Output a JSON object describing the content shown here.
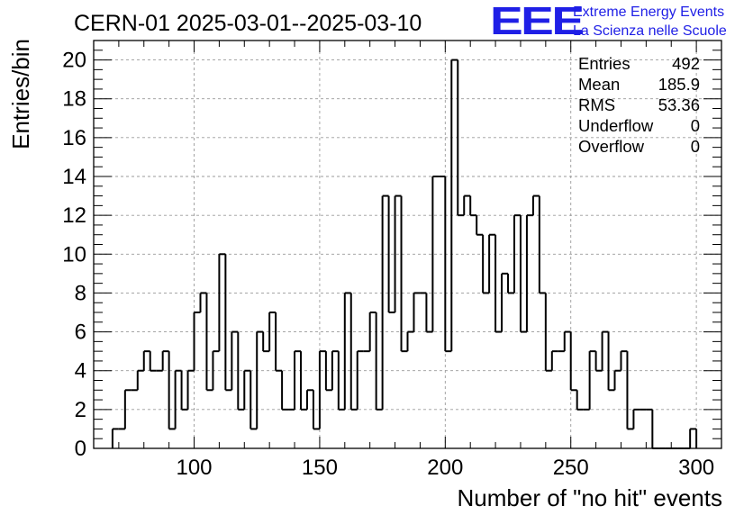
{
  "logo": {
    "mark": "EEE",
    "line1": "Extreme Energy Events",
    "line2": "La Scienza nelle Scuole"
  },
  "stats": {
    "rows": [
      {
        "label": "Entries",
        "value": "492"
      },
      {
        "label": "Mean",
        "value": "185.9"
      },
      {
        "label": "RMS",
        "value": "53.36"
      },
      {
        "label": "Underflow",
        "value": "0"
      },
      {
        "label": "Overflow",
        "value": "0"
      }
    ]
  },
  "chart_data": {
    "type": "bar",
    "style": "step-histogram",
    "title": "CERN-01 2025-03-01--2025-03-10",
    "xlabel": "Number of \"no hit\" events",
    "ylabel": "Entries/bin",
    "xlim": [
      60,
      310
    ],
    "ylim": [
      0,
      21
    ],
    "bin_width": 2.5,
    "xticks": [
      100,
      150,
      200,
      250,
      300
    ],
    "yticks": [
      0,
      2,
      4,
      6,
      8,
      10,
      12,
      14,
      16,
      18,
      20
    ],
    "grid": true,
    "series": [
      {
        "name": "CERN-01",
        "x": [
          67.5,
          70,
          72.5,
          75,
          77.5,
          80,
          82.5,
          85,
          87.5,
          90,
          92.5,
          95,
          97.5,
          100,
          102.5,
          105,
          107.5,
          110,
          112.5,
          115,
          117.5,
          120,
          122.5,
          125,
          127.5,
          130,
          132.5,
          135,
          137.5,
          140,
          142.5,
          145,
          147.5,
          150,
          152.5,
          155,
          157.5,
          160,
          162.5,
          165,
          167.5,
          170,
          172.5,
          175,
          177.5,
          180,
          182.5,
          185,
          187.5,
          190,
          192.5,
          195,
          197.5,
          200,
          202.5,
          205,
          207.5,
          210,
          212.5,
          215,
          217.5,
          220,
          222.5,
          225,
          227.5,
          230,
          232.5,
          235,
          237.5,
          240,
          242.5,
          245,
          247.5,
          250,
          252.5,
          255,
          257.5,
          260,
          262.5,
          265,
          267.5,
          270,
          272.5,
          275,
          277.5,
          280,
          282.5,
          285,
          287.5,
          290,
          292.5,
          295,
          297.5
        ],
        "values": [
          1,
          1,
          3,
          3,
          4,
          5,
          4,
          4,
          5,
          1,
          4,
          2,
          4,
          7,
          8,
          3,
          5,
          10,
          3,
          6,
          2,
          4,
          1,
          6,
          5,
          7,
          4,
          2,
          2,
          5,
          2,
          3,
          1,
          5,
          3,
          5,
          2,
          8,
          2,
          5,
          5,
          7,
          2,
          13,
          7,
          13,
          5,
          6,
          8,
          8,
          6,
          14,
          14,
          5,
          20,
          12,
          13,
          12,
          11,
          8,
          11,
          6,
          9,
          8,
          12,
          6,
          12,
          13,
          8,
          4,
          5,
          5,
          6,
          3,
          2,
          2,
          5,
          4,
          6,
          3,
          4,
          5,
          1,
          2,
          2,
          2,
          0,
          0,
          0,
          0,
          0,
          0,
          1
        ]
      }
    ]
  }
}
